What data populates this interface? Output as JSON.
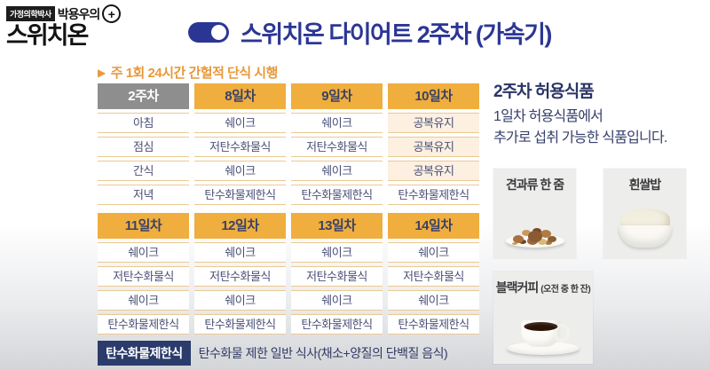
{
  "logo": {
    "badge": "가정의학박사",
    "name": "박용우의",
    "plus": "+",
    "brand": "스위치온"
  },
  "header": {
    "title": "스위치온 다이어트 2주차 (가속기)",
    "toggle_icon": "toggle-on-icon"
  },
  "subtitle": {
    "bullet": "▶",
    "text": "주 1회 24시간 간헐적 단식 시행"
  },
  "table1": {
    "headers": [
      "2주차",
      "8일차",
      "9일차",
      "10일차"
    ],
    "rows": [
      {
        "label": "아침",
        "cells": [
          "쉐이크",
          "쉐이크",
          "공복유지"
        ]
      },
      {
        "label": "점심",
        "cells": [
          "저탄수화물식",
          "저탄수화물식",
          "공복유지"
        ]
      },
      {
        "label": "간식",
        "cells": [
          "쉐이크",
          "쉐이크",
          "공복유지"
        ]
      },
      {
        "label": "저녁",
        "cells": [
          "탄수화물제한식",
          "탄수화물제한식",
          "탄수화물제한식"
        ]
      }
    ]
  },
  "table2": {
    "headers": [
      "11일차",
      "12일차",
      "13일차",
      "14일차"
    ],
    "rows": [
      [
        "쉐이크",
        "쉐이크",
        "쉐이크",
        "쉐이크"
      ],
      [
        "저탄수화물식",
        "저탄수화물식",
        "저탄수화물식",
        "저탄수화물식"
      ],
      [
        "쉐이크",
        "쉐이크",
        "쉐이크",
        "쉐이크"
      ],
      [
        "탄수화물제한식",
        "탄수화물제한식",
        "탄수화물제한식",
        "탄수화물제한식"
      ]
    ]
  },
  "note": {
    "term": "탄수화물제한식",
    "definition": "탄수화물 제한 일반 식사(채소+양질의 단백질 음식)"
  },
  "panel": {
    "heading": "2주차 허용식품",
    "desc_line1": "1일차 허용식품에서",
    "desc_line2": "추가로 섭취 가능한 식품입니다.",
    "cards": [
      {
        "label": "견과류 한 줌",
        "icon": "nuts-plate-icon"
      },
      {
        "label": "흰쌀밥",
        "icon": "rice-bowl-icon"
      },
      {
        "label": "블랙커피",
        "sublabel": "(오전 중 한 잔)",
        "icon": "coffee-cup-icon"
      }
    ]
  },
  "colors": {
    "title_blue": "#2b3694",
    "header_orange": "#efae3e",
    "header_gray": "#8e8e8e",
    "cell_border": "#ebc992",
    "fasting_peach": "#fdf0e1",
    "subtitle_orange": "#e8993d",
    "note_navy": "#2b3b6c",
    "cell_text_navy": "#4a5178"
  }
}
